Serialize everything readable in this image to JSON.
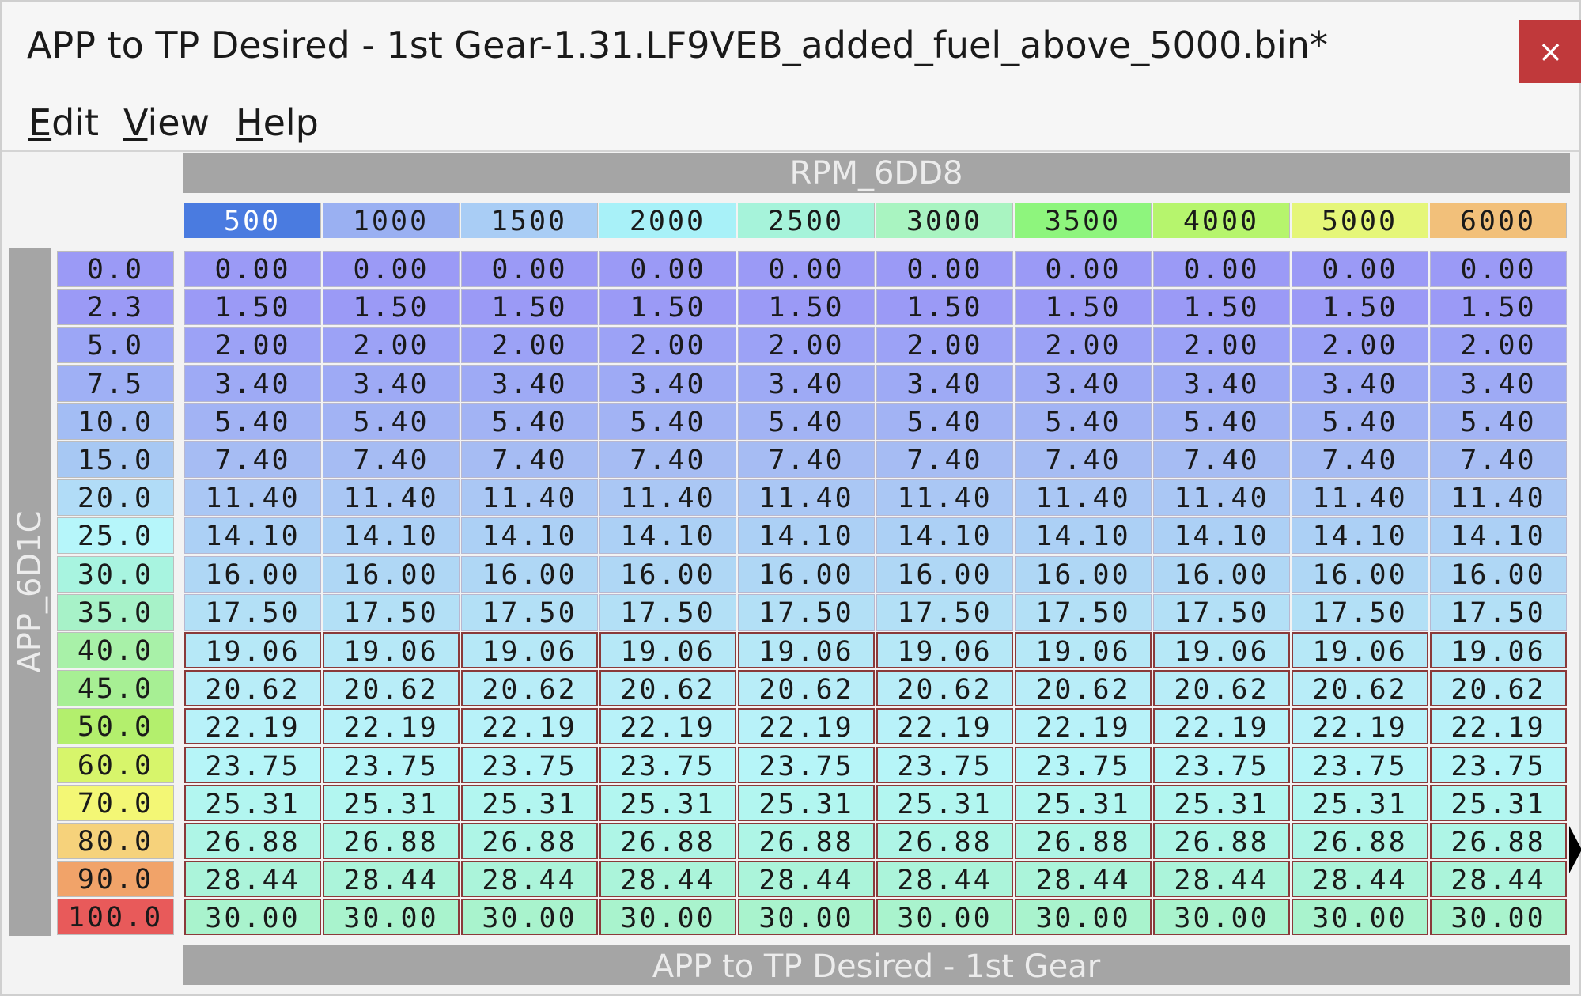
{
  "window": {
    "title": "APP to TP Desired - 1st Gear-1.31.LF9VEB_added_fuel_above_5000.bin*",
    "close_label": "×"
  },
  "menu": [
    "Edit",
    "View",
    "Help"
  ],
  "table": {
    "x_axis_name": "RPM_6DD8",
    "y_axis_name": "APP_6D1C",
    "footer": "APP to TP Desired - 1st Gear",
    "columns": [
      "500",
      "1000",
      "1500",
      "2000",
      "2500",
      "3000",
      "3500",
      "4000",
      "5000",
      "6000"
    ],
    "rows": [
      "0.0",
      "2.3",
      "5.0",
      "7.5",
      "10.0",
      "15.0",
      "20.0",
      "25.0",
      "30.0",
      "35.0",
      "40.0",
      "45.0",
      "50.0",
      "60.0",
      "70.0",
      "80.0",
      "90.0",
      "100.0"
    ],
    "values": [
      "0.00",
      "1.50",
      "2.00",
      "3.40",
      "5.40",
      "7.40",
      "11.40",
      "14.10",
      "16.00",
      "17.50",
      "19.06",
      "20.62",
      "22.19",
      "23.75",
      "25.31",
      "26.88",
      "28.44",
      "30.00"
    ],
    "selected_rows_from": 10,
    "column_colors": [
      "#4a7be0",
      "#9ab0f2",
      "#a9cdf5",
      "#a8f1f8",
      "#a6f3da",
      "#a9f4c1",
      "#8ef57d",
      "#b6f56d",
      "#e5f679",
      "#f2c07a"
    ],
    "row_colors": [
      "#9b9af6",
      "#9b9af6",
      "#9ca6f6",
      "#9fb0f5",
      "#a3bdf4",
      "#a7c8f3",
      "#b1dcf7",
      "#b6f6fa",
      "#a8f4e0",
      "#a7f2c8",
      "#a8f1a8",
      "#a7ef94",
      "#b3ef6d",
      "#d7f56b",
      "#f3f775",
      "#f6d27b",
      "#f1a369",
      "#e85a5a"
    ],
    "value_colors": [
      "#9b9af6",
      "#9b9af6",
      "#9ca2f6",
      "#9eaaf5",
      "#a2b3f4",
      "#a6bcf3",
      "#aac7f4",
      "#acd0f5",
      "#afd7f5",
      "#b3e0f6",
      "#b6e8f7",
      "#b8edf8",
      "#b8f2f9",
      "#b6f5f8",
      "#b2f6f0",
      "#aef5e6",
      "#abf4da",
      "#a9f3cd"
    ]
  }
}
